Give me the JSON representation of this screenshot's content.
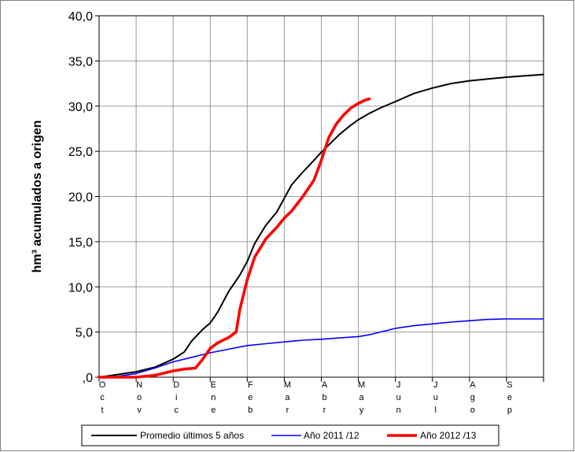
{
  "chart_data": {
    "type": "line",
    "title": "",
    "xlabel": "",
    "ylabel": "hm³ acumulados a origen",
    "ylim": [
      0,
      40
    ],
    "yticks": [
      ",0",
      "5,0",
      "10,0",
      "15,0",
      "20,0",
      "25,0",
      "30,0",
      "35,0",
      "40,0"
    ],
    "categories": [
      "Oct",
      "Nov",
      "Dic",
      "Ene",
      "Feb",
      "Mar",
      "Abr",
      "May",
      "Jun",
      "Jul",
      "Ago",
      "Sep"
    ],
    "grid": true,
    "legend_position": "bottom",
    "series": [
      {
        "name": "Promedio últimos 5 años",
        "color": "#000000",
        "x": [
          0,
          0.5,
          1,
          1.5,
          2,
          2.3,
          2.5,
          2.8,
          3,
          3.2,
          3.5,
          3.8,
          4,
          4.2,
          4.5,
          4.8,
          5,
          5.2,
          5.5,
          5.8,
          6,
          6.2,
          6.5,
          6.8,
          7,
          7.3,
          7.6,
          8,
          8.5,
          9,
          9.5,
          10,
          10.5,
          11,
          11.5,
          12
        ],
        "values": [
          0,
          0.3,
          0.6,
          1.1,
          2.0,
          2.8,
          4.0,
          5.3,
          6.0,
          7.2,
          9.5,
          11.3,
          12.8,
          14.8,
          16.8,
          18.3,
          19.8,
          21.3,
          22.7,
          24.0,
          24.9,
          25.7,
          26.9,
          27.9,
          28.5,
          29.2,
          29.8,
          30.5,
          31.4,
          32.0,
          32.5,
          32.8,
          33.0,
          33.2,
          33.35,
          33.5
        ]
      },
      {
        "name": "Año 2011 /12",
        "color": "#0000ff",
        "x": [
          0,
          0.5,
          1,
          1.5,
          2,
          2.5,
          3,
          3.5,
          4,
          4.5,
          5,
          5.5,
          6,
          6.5,
          7,
          7.3,
          7.6,
          8,
          8.5,
          9,
          9.5,
          10,
          10.5,
          11,
          11.5,
          12
        ],
        "values": [
          0,
          0.1,
          0.4,
          1.0,
          1.7,
          2.2,
          2.7,
          3.1,
          3.5,
          3.7,
          3.9,
          4.1,
          4.2,
          4.35,
          4.5,
          4.7,
          5.0,
          5.4,
          5.7,
          5.9,
          6.1,
          6.25,
          6.4,
          6.45,
          6.45,
          6.45
        ]
      },
      {
        "name": "Año 2012 /13",
        "color": "#ff0000",
        "x": [
          0,
          0.5,
          1,
          1.5,
          1.8,
          2,
          2.3,
          2.6,
          2.8,
          3,
          3.2,
          3.5,
          3.7,
          3.8,
          4,
          4.2,
          4.5,
          4.8,
          5,
          5.2,
          5.5,
          5.8,
          6,
          6.2,
          6.4,
          6.6,
          6.8,
          7,
          7.2,
          7.3
        ],
        "values": [
          0,
          0,
          0,
          0.2,
          0.5,
          0.7,
          0.9,
          1.0,
          2.0,
          3.2,
          3.8,
          4.4,
          5.0,
          7.5,
          10.8,
          13.3,
          15.3,
          16.6,
          17.6,
          18.4,
          20.0,
          21.8,
          24.0,
          26.5,
          28.0,
          29.0,
          29.8,
          30.3,
          30.7,
          30.8
        ]
      }
    ]
  }
}
